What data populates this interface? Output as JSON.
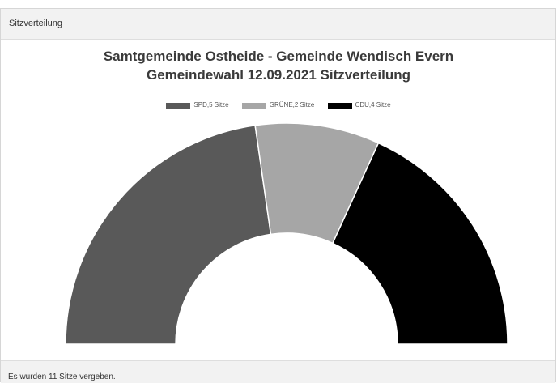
{
  "header": {
    "title": "Sitzverteilung"
  },
  "footer": {
    "text": "Es wurden 11 Sitze vergeben."
  },
  "chart_data": {
    "type": "pie",
    "title": "Samtgemeinde Ostheide - Gemeinde Wendisch Evern",
    "subtitle": "Gemeindewahl 12.09.2021 Sitzverteilung",
    "categories": [
      "SPD,5 Sitze",
      "GRÜNE,2 Sitze",
      "CDU,4 Sitze"
    ],
    "values": [
      5,
      2,
      4
    ],
    "colors": [
      "#595959",
      "#a6a6a6",
      "#000000"
    ],
    "legend_position": "top"
  }
}
